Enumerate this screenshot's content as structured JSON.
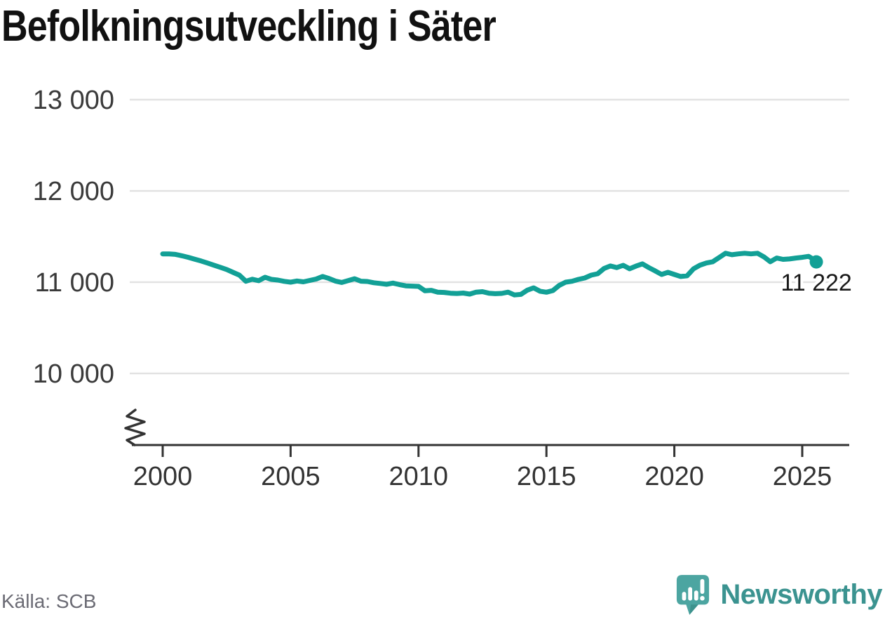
{
  "header": {
    "title": "Befolkningsutveckling i Säter"
  },
  "footer": {
    "source": "Källa: SCB",
    "brand_name": "Newsworthy",
    "brand_icon_color": "#4CA5A1",
    "brand_icon_shade": "#3D928D",
    "brand_text_color": "#3B9390"
  },
  "chart_data": {
    "type": "line",
    "title": "Befolkningsutveckling i Säter",
    "xlabel": "",
    "ylabel": "",
    "grid": true,
    "legend": "none",
    "axis_break": true,
    "line_color": "#12A096",
    "axis_color": "#333333",
    "grid_color": "#E2E2E2",
    "label_color": "#3A3A3A",
    "end_label_color": "#1A1A1A",
    "xlim": [
      1998.7,
      2027.1
    ],
    "ylim": [
      9600,
      13250
    ],
    "x_ticks": [
      {
        "value": 2000,
        "label": "2000"
      },
      {
        "value": 2005,
        "label": "2005"
      },
      {
        "value": 2010,
        "label": "2010"
      },
      {
        "value": 2015,
        "label": "2015"
      },
      {
        "value": 2020,
        "label": "2020"
      },
      {
        "value": 2025,
        "label": "2025"
      }
    ],
    "y_ticks": [
      {
        "value": 13000,
        "label": "13 000"
      },
      {
        "value": 12000,
        "label": "12 000"
      },
      {
        "value": 11000,
        "label": "11 000"
      },
      {
        "value": 10000,
        "label": "10 000"
      }
    ],
    "end_label": "11 222",
    "end_value": 11222,
    "series": [
      {
        "name": "Befolkning i Säter",
        "points": [
          [
            2000.0,
            11310
          ],
          [
            2000.25,
            11309
          ],
          [
            2000.5,
            11305
          ],
          [
            2000.75,
            11289
          ],
          [
            2001.0,
            11272
          ],
          [
            2001.25,
            11252
          ],
          [
            2001.5,
            11232
          ],
          [
            2001.75,
            11210
          ],
          [
            2002.0,
            11186
          ],
          [
            2002.25,
            11163
          ],
          [
            2002.5,
            11139
          ],
          [
            2002.75,
            11108
          ],
          [
            2003.0,
            11077
          ],
          [
            2003.25,
            11010
          ],
          [
            2003.5,
            11032
          ],
          [
            2003.75,
            11016
          ],
          [
            2004.0,
            11054
          ],
          [
            2004.25,
            11031
          ],
          [
            2004.5,
            11023
          ],
          [
            2004.75,
            11009
          ],
          [
            2005.0,
            11000
          ],
          [
            2005.25,
            11013
          ],
          [
            2005.5,
            11004
          ],
          [
            2005.75,
            11019
          ],
          [
            2006.0,
            11035
          ],
          [
            2006.25,
            11062
          ],
          [
            2006.5,
            11041
          ],
          [
            2006.75,
            11012
          ],
          [
            2007.0,
            10997
          ],
          [
            2007.25,
            11017
          ],
          [
            2007.5,
            11038
          ],
          [
            2007.75,
            11011
          ],
          [
            2008.0,
            11008
          ],
          [
            2008.25,
            10994
          ],
          [
            2008.5,
            10986
          ],
          [
            2008.75,
            10977
          ],
          [
            2009.0,
            10990
          ],
          [
            2009.25,
            10974
          ],
          [
            2009.5,
            10960
          ],
          [
            2009.75,
            10957
          ],
          [
            2010.0,
            10954
          ],
          [
            2010.25,
            10906
          ],
          [
            2010.5,
            10911
          ],
          [
            2010.75,
            10891
          ],
          [
            2011.0,
            10888
          ],
          [
            2011.25,
            10879
          ],
          [
            2011.5,
            10876
          ],
          [
            2011.75,
            10881
          ],
          [
            2012.0,
            10869
          ],
          [
            2012.25,
            10891
          ],
          [
            2012.5,
            10896
          ],
          [
            2012.75,
            10879
          ],
          [
            2013.0,
            10874
          ],
          [
            2013.25,
            10877
          ],
          [
            2013.5,
            10891
          ],
          [
            2013.75,
            10860
          ],
          [
            2014.0,
            10866
          ],
          [
            2014.25,
            10912
          ],
          [
            2014.5,
            10938
          ],
          [
            2014.75,
            10901
          ],
          [
            2015.0,
            10890
          ],
          [
            2015.25,
            10908
          ],
          [
            2015.5,
            10965
          ],
          [
            2015.75,
            11000
          ],
          [
            2016.0,
            11010
          ],
          [
            2016.25,
            11031
          ],
          [
            2016.5,
            11046
          ],
          [
            2016.75,
            11077
          ],
          [
            2017.0,
            11092
          ],
          [
            2017.25,
            11150
          ],
          [
            2017.5,
            11178
          ],
          [
            2017.75,
            11160
          ],
          [
            2018.0,
            11185
          ],
          [
            2018.25,
            11147
          ],
          [
            2018.5,
            11176
          ],
          [
            2018.75,
            11201
          ],
          [
            2019.0,
            11160
          ],
          [
            2019.25,
            11124
          ],
          [
            2019.5,
            11085
          ],
          [
            2019.75,
            11108
          ],
          [
            2020.0,
            11085
          ],
          [
            2020.25,
            11062
          ],
          [
            2020.5,
            11070
          ],
          [
            2020.75,
            11147
          ],
          [
            2021.0,
            11186
          ],
          [
            2021.25,
            11210
          ],
          [
            2021.5,
            11224
          ],
          [
            2021.75,
            11270
          ],
          [
            2022.0,
            11317
          ],
          [
            2022.25,
            11301
          ],
          [
            2022.5,
            11310
          ],
          [
            2022.75,
            11317
          ],
          [
            2023.0,
            11310
          ],
          [
            2023.25,
            11317
          ],
          [
            2023.5,
            11278
          ],
          [
            2023.75,
            11224
          ],
          [
            2024.0,
            11265
          ],
          [
            2024.25,
            11250
          ],
          [
            2024.5,
            11255
          ],
          [
            2024.75,
            11265
          ],
          [
            2025.0,
            11272
          ],
          [
            2025.25,
            11283
          ],
          [
            2025.5,
            11240
          ],
          [
            2025.55,
            11222
          ]
        ]
      }
    ]
  }
}
